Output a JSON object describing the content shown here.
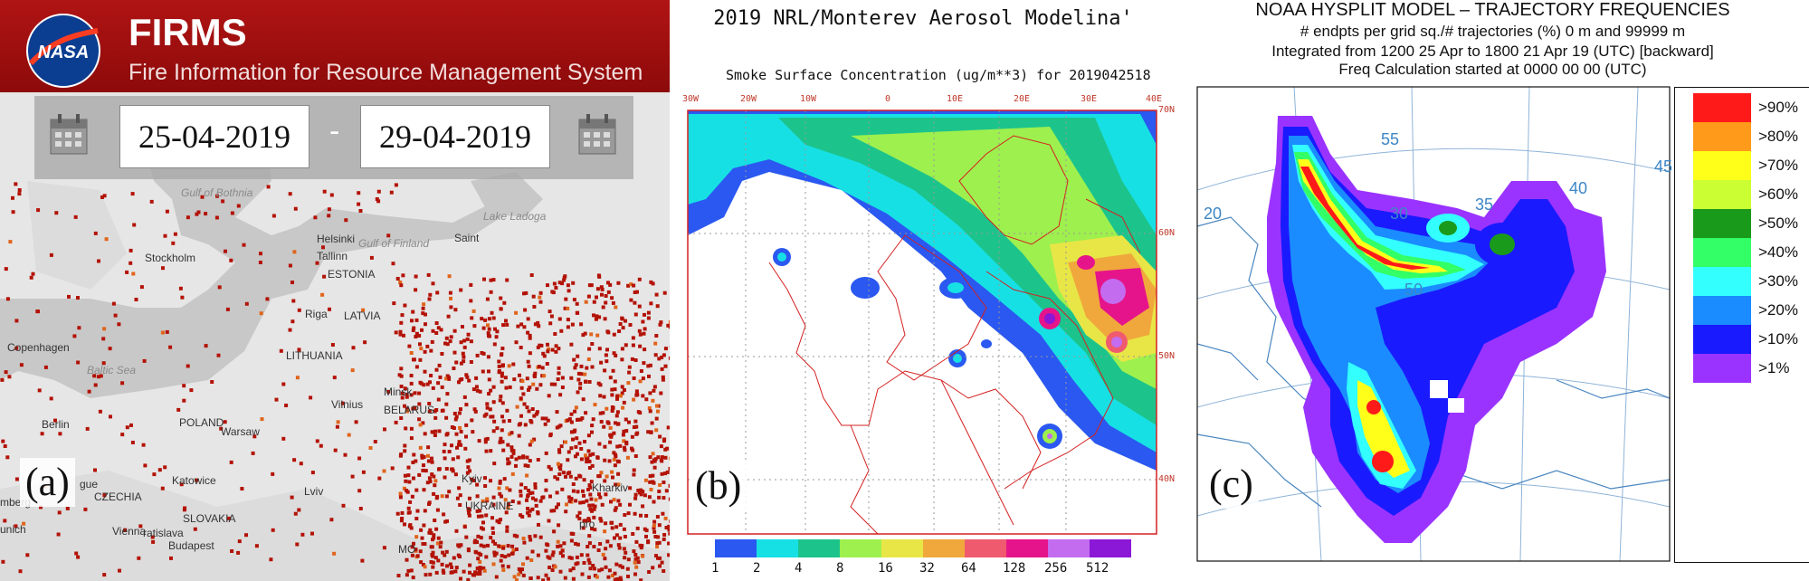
{
  "panel_a": {
    "title": "FIRMS",
    "subtitle": "Fire Information for Resource Management System",
    "logo_text": "NASA",
    "date_start": "25-04-2019",
    "date_separator": "-",
    "date_end": "29-04-2019",
    "label": "(a)",
    "map_labels": [
      "Gulf of Bothnia",
      "Helsinki",
      "Gulf of Finland",
      "Saint",
      "Lake Ladoga",
      "Tallinn",
      "ESTONIA",
      "Stockholm",
      "Riga",
      "LATVIA",
      "Copenhagen",
      "Baltic Sea",
      "LITHUANIA",
      "Vilnius",
      "Minsk",
      "BELARUS",
      "Berlin",
      "POLAND",
      "Warsaw",
      "gue",
      "CZECHIA",
      "Katowice",
      "Lviv",
      "SLOVAKIA",
      "Kyiv",
      "UKRAINE",
      "Kharkiv",
      "mberg",
      "Vienna",
      "ratislava",
      "Budapest",
      "unich",
      "pro",
      "MO"
    ],
    "colors": {
      "header": "#a81212",
      "fire": "#b31206",
      "fire_hot": "#e0641a",
      "land": "#e6e6e6",
      "water": "#c6c6c6"
    }
  },
  "panel_b": {
    "title": "2019 NRL/Monterev Aerosol Modelina'",
    "subtitle": "Smoke Surface Concentration (ug/m**3) for 2019042518",
    "label": "(b)",
    "lon_labels": [
      "30W",
      "20W",
      "10W",
      "0",
      "10E",
      "20E",
      "30E",
      "40E"
    ],
    "lat_labels": [
      "70N",
      "60N",
      "50N",
      "40N"
    ],
    "colorbar_labels": [
      "1",
      "2",
      "4",
      "8",
      "16",
      "32",
      "64",
      "128",
      "256",
      "512"
    ],
    "colorbar_colors": [
      "#2a58f0",
      "#17e0e4",
      "#1cc48c",
      "#9ef04e",
      "#e8e646",
      "#f0a83c",
      "#f05a6e",
      "#e6148a",
      "#c36cf0",
      "#8a18d6"
    ]
  },
  "panel_c": {
    "title": "NOAA HYSPLIT MODEL – TRAJECTORY FREQUENCIES",
    "line1": "# endpts per grid sq./# trajectories (%)     0 m and 99999 m",
    "line2": "Integrated from 1200 25 Apr to 1800 21 Apr 19 (UTC) [backward]",
    "line3": "Freq Calculation started at 0000 00     00 (UTC)",
    "label": "(c)",
    "grid_labels": [
      "55",
      "40",
      "45",
      "20",
      "30",
      "35",
      "50"
    ],
    "legend": [
      {
        "label": ">90%",
        "color": "#ff1a1a"
      },
      {
        "label": ">80%",
        "color": "#ff9a1a"
      },
      {
        "label": ">70%",
        "color": "#ffff1a"
      },
      {
        "label": ">60%",
        "color": "#ccff33"
      },
      {
        "label": ">50%",
        "color": "#1a9a1a"
      },
      {
        "label": ">40%",
        "color": "#33ff66"
      },
      {
        "label": ">30%",
        "color": "#33ffff"
      },
      {
        "label": ">20%",
        "color": "#1a8cff"
      },
      {
        "label": ">10%",
        "color": "#1a1aff"
      },
      {
        "label": ">1%",
        "color": "#9a33ff"
      }
    ]
  }
}
